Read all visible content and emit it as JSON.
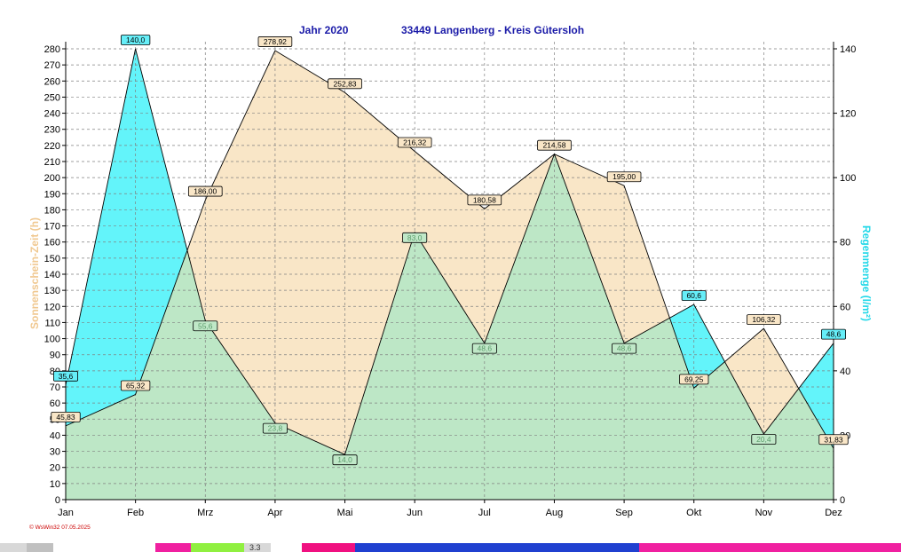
{
  "header": {
    "year_label": "Jahr  2020",
    "location_label": "33449 Langenberg - Kreis Gütersloh"
  },
  "footer": {
    "credit": "© WsWin32  07.05.2025",
    "strip_text": "3.3"
  },
  "colors": {
    "sunshine_fill": "#f9e6c7",
    "rain_fill": "#63f4fa",
    "overlap_fill": "#bde7c6",
    "sunshine_axis_title": "#f0c890",
    "rain_axis_title": "#22d8e8",
    "rain_label_box": "#66eef8",
    "rain_label_box_overlap": "#c0e8c8",
    "sunshine_label_box": "#f9e6c7",
    "title": "#1a1aa8"
  },
  "chart_data": {
    "type": "area",
    "title": "Jahr  2020     33449 Langenberg - Kreis Gütersloh",
    "categories": [
      "Jan",
      "Feb",
      "Mrz",
      "Apr",
      "Mai",
      "Jun",
      "Jul",
      "Aug",
      "Sep",
      "Okt",
      "Nov",
      "Dez"
    ],
    "y_left": {
      "label": "Sonnenschein-Zeit  (h)",
      "min": 0,
      "max": 280,
      "step": 10
    },
    "y_right": {
      "label": "Regenmenge   (l/m²)",
      "min": 0,
      "max": 140,
      "step": 20
    },
    "grid": true,
    "series": [
      {
        "name": "Sonnenschein-Zeit",
        "axis": "left",
        "values": [
          45.83,
          65.32,
          186.0,
          278.92,
          252.83,
          216.32,
          180.58,
          214.58,
          195.0,
          69.25,
          106.32,
          31.83
        ],
        "labels": [
          "45,83",
          "65,32",
          "186,00",
          "278,92",
          "252,83",
          "216,32",
          "180,58",
          "214,58",
          "195,00",
          "69,25",
          "106,32",
          "31,83"
        ]
      },
      {
        "name": "Regenmenge",
        "axis": "right",
        "values": [
          35.6,
          140.0,
          55.6,
          23.8,
          14.0,
          83.0,
          48.6,
          107.3,
          48.6,
          60.6,
          20.4,
          48.6
        ],
        "labels": [
          "35,6",
          "140,0",
          "55,6",
          "23,8",
          "14,0",
          "83,0",
          "48,6",
          "",
          "48,6",
          "60,6",
          "20,4",
          "48,6"
        ]
      }
    ]
  }
}
